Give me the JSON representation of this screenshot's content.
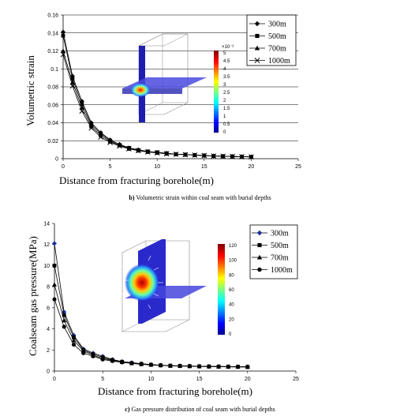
{
  "chart_data": [
    {
      "type": "line",
      "xlabel": "Distance from fracturing borehole(m)",
      "ylabel": "Volumetric strain",
      "xlim": [
        0,
        25
      ],
      "ylim": [
        0,
        0.16
      ],
      "x_ticks": [
        "0",
        "5",
        "10",
        "15",
        "20",
        "25"
      ],
      "y_ticks": [
        "0",
        "0.02",
        "0.04",
        "0.06",
        "0.08",
        "0.1",
        "0.12",
        "0.14",
        "0.16"
      ],
      "grid": "horizontal",
      "legend_position": "top-right",
      "caption_label": "b)",
      "caption_text": "Volumetric strain within coal seam with burial depths",
      "inset_colorbar": {
        "exponent": "×10⁻²",
        "labels": [
          "5",
          "4.5",
          "4",
          "3.5",
          "3",
          "2.5",
          "2",
          "1.5",
          "1",
          "0.5",
          "0"
        ]
      },
      "x": [
        0,
        1,
        2,
        3,
        4,
        5,
        6,
        7,
        8,
        9,
        10,
        11,
        12,
        13,
        14,
        15,
        16,
        17,
        18,
        19,
        20
      ],
      "series": [
        {
          "name": "300m",
          "marker": "diamond",
          "values": [
            0.141,
            0.092,
            0.064,
            0.04,
            0.029,
            0.021,
            0.016,
            0.012,
            0.01,
            0.008,
            0.007,
            0.006,
            0.005,
            0.0045,
            0.004,
            0.0035,
            0.003,
            0.0028,
            0.0025,
            0.0022,
            0.002
          ]
        },
        {
          "name": "500m",
          "marker": "square",
          "values": [
            0.137,
            0.089,
            0.061,
            0.038,
            0.028,
            0.02,
            0.015,
            0.012,
            0.009,
            0.008,
            0.007,
            0.006,
            0.005,
            0.0045,
            0.004,
            0.0035,
            0.003,
            0.0028,
            0.0025,
            0.0022,
            0.002
          ]
        },
        {
          "name": "700m",
          "marker": "triangle",
          "values": [
            0.12,
            0.085,
            0.057,
            0.036,
            0.026,
            0.019,
            0.015,
            0.011,
            0.009,
            0.0075,
            0.0065,
            0.0055,
            0.005,
            0.0045,
            0.004,
            0.0035,
            0.003,
            0.0028,
            0.0025,
            0.0022,
            0.002
          ]
        },
        {
          "name": "1000m",
          "marker": "x",
          "values": [
            0.116,
            0.081,
            0.053,
            0.034,
            0.024,
            0.018,
            0.014,
            0.011,
            0.009,
            0.0075,
            0.0065,
            0.0055,
            0.005,
            0.0045,
            0.004,
            0.0035,
            0.003,
            0.0028,
            0.0025,
            0.0022,
            0.002
          ]
        }
      ]
    },
    {
      "type": "line",
      "xlabel": "Distance from fracturing borehole(m)",
      "ylabel": "Coalseam gas pressure(MPa)",
      "xlim": [
        0,
        25
      ],
      "ylim": [
        0,
        14
      ],
      "x_ticks": [
        "0",
        "5",
        "10",
        "15",
        "20",
        "25"
      ],
      "y_ticks": [
        "0",
        "2",
        "4",
        "6",
        "8",
        "10",
        "12",
        "14"
      ],
      "grid": "none",
      "legend_position": "top-right",
      "caption_label": "c)",
      "caption_text": "Gas pressure distribution of coal seam with burial depths",
      "inset_colorbar": {
        "exponent": "",
        "labels": [
          "120",
          "100",
          "80",
          "60",
          "40",
          "20",
          "0"
        ]
      },
      "x": [
        0,
        1,
        2,
        3,
        4,
        5,
        6,
        7,
        8,
        9,
        10,
        11,
        12,
        13,
        14,
        15,
        16,
        17,
        18,
        19,
        20
      ],
      "series": [
        {
          "name": "300m",
          "marker": "diamond",
          "color": "#1a2fa0",
          "values": [
            12.1,
            5.6,
            3.4,
            2.1,
            1.7,
            1.4,
            1.1,
            0.9,
            0.8,
            0.7,
            0.62,
            0.56,
            0.52,
            0.5,
            0.48,
            0.46,
            0.45,
            0.44,
            0.43,
            0.42,
            0.41
          ]
        },
        {
          "name": "500m",
          "marker": "square",
          "color": "#000000",
          "values": [
            10.0,
            5.3,
            3.2,
            2.0,
            1.6,
            1.3,
            1.05,
            0.88,
            0.76,
            0.68,
            0.6,
            0.55,
            0.51,
            0.49,
            0.47,
            0.45,
            0.44,
            0.43,
            0.42,
            0.41,
            0.4
          ]
        },
        {
          "name": "700m",
          "marker": "triangle",
          "color": "#000000",
          "values": [
            8.2,
            4.8,
            2.9,
            1.9,
            1.5,
            1.2,
            1.0,
            0.85,
            0.74,
            0.66,
            0.59,
            0.54,
            0.5,
            0.48,
            0.46,
            0.44,
            0.43,
            0.42,
            0.41,
            0.4,
            0.39
          ]
        },
        {
          "name": "1000m",
          "marker": "circle",
          "color": "#000000",
          "values": [
            6.8,
            4.2,
            2.5,
            1.7,
            1.4,
            1.1,
            0.95,
            0.82,
            0.72,
            0.64,
            0.58,
            0.53,
            0.49,
            0.47,
            0.45,
            0.43,
            0.42,
            0.41,
            0.4,
            0.39,
            0.38
          ]
        }
      ]
    }
  ]
}
